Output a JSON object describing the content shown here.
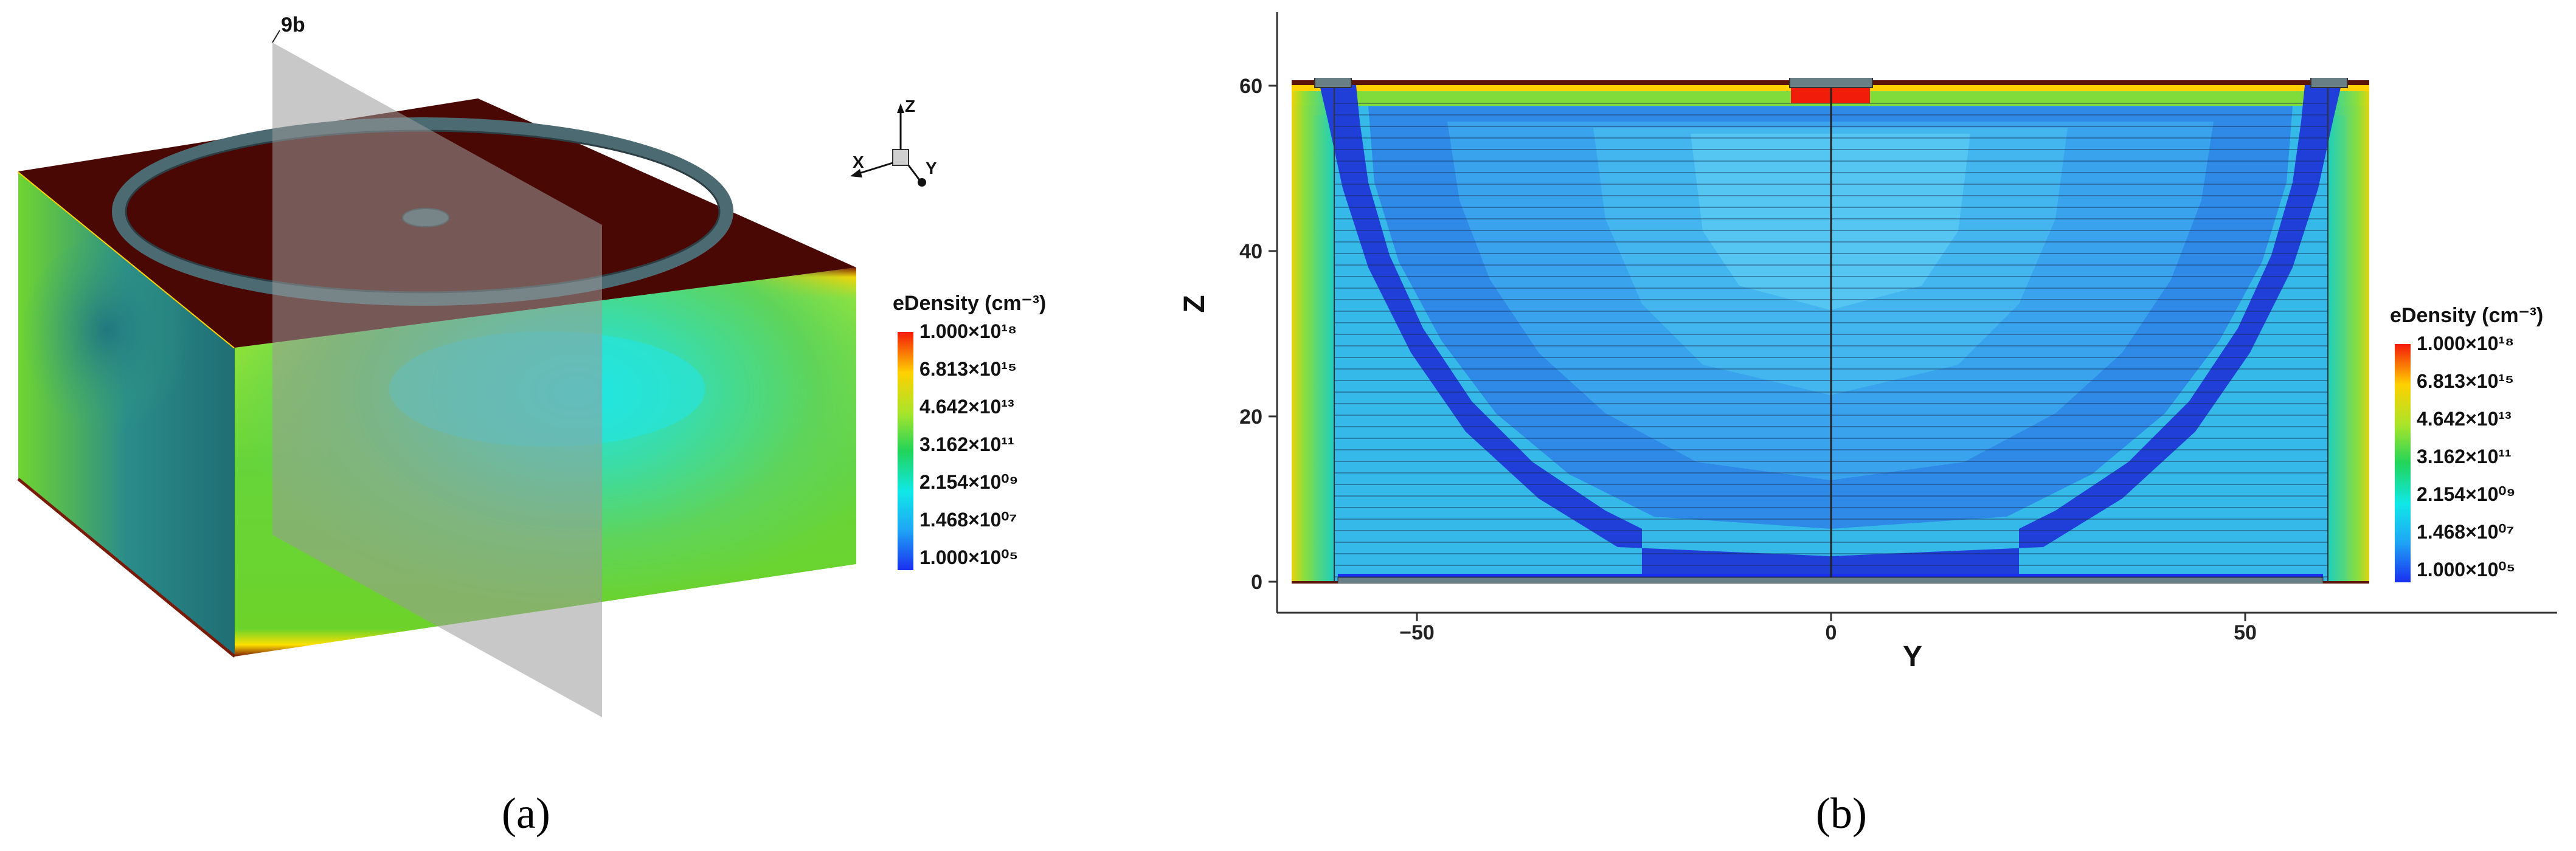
{
  "panel_a": {
    "caption": "(a)",
    "plane_label": "9b",
    "axes_triad": {
      "z": "Z",
      "x": "X",
      "y": "Y"
    },
    "colorbar": {
      "title": "eDensity (cm⁻³)",
      "values": [
        "1.000×10¹⁸",
        "6.813×10¹⁵",
        "4.642×10¹³",
        "3.162×10¹¹",
        "2.154×10⁰⁹",
        "1.468×10⁰⁷",
        "1.000×10⁰⁵"
      ]
    }
  },
  "panel_b": {
    "caption": "(b)",
    "xlabel": "Y",
    "ylabel": "Z",
    "x_ticks": [
      "−50",
      "0",
      "50"
    ],
    "y_ticks": [
      "60",
      "40",
      "20",
      "0"
    ],
    "colorbar": {
      "title": "eDensity (cm⁻³)",
      "values": [
        "1.000×10¹⁸",
        "6.813×10¹⁵",
        "4.642×10¹³",
        "3.162×10¹¹",
        "2.154×10⁰⁹",
        "1.468×10⁰⁷",
        "1.000×10⁰⁵"
      ]
    }
  },
  "colors": {
    "top_surface": "#4a0804",
    "electrode": "#4c6a72",
    "depleted": "#1f3fd8",
    "bulk_blue": "#3aa3ee",
    "green": "#6dd12a"
  }
}
